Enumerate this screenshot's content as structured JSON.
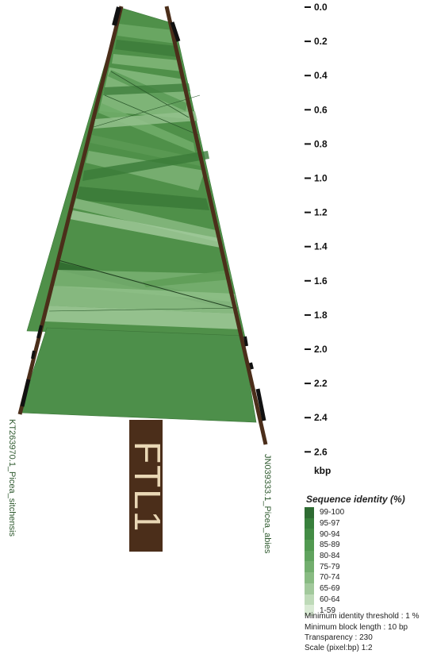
{
  "axis": {
    "unit": "kbp",
    "ticks": [
      "0.0",
      "0.2",
      "0.4",
      "0.6",
      "0.8",
      "1.0",
      "1.2",
      "1.4",
      "1.6",
      "1.8",
      "2.0",
      "2.2",
      "2.4",
      "2.6"
    ]
  },
  "sequences": {
    "left": "KT263970.1_Picea_sitchensis",
    "right": "JN039333.1_Picea_abies"
  },
  "gene": {
    "label": "FTL1",
    "color": "#4b2e1a"
  },
  "legend": {
    "title": "Sequence identity (%)",
    "items": [
      {
        "label": "99-100",
        "color": "#2e6b32"
      },
      {
        "label": "95-97",
        "color": "#38803c"
      },
      {
        "label": "90-94",
        "color": "#438c45"
      },
      {
        "label": "85-89",
        "color": "#519950"
      },
      {
        "label": "80-84",
        "color": "#60a35e"
      },
      {
        "label": "75-79",
        "color": "#72ae6e"
      },
      {
        "label": "70-74",
        "color": "#88bb82"
      },
      {
        "label": "65-69",
        "color": "#a2c99c"
      },
      {
        "label": "60-64",
        "color": "#bedab8"
      },
      {
        "label": "1-59",
        "color": "#d9ead4"
      }
    ]
  },
  "parameters": {
    "min_identity": "Minimum identity threshold : 1 %",
    "min_block": "Minimum block length : 10 bp",
    "transparency": "Transparency : 230",
    "scale": "Scale (pixel:bp) 1:2"
  },
  "colors": {
    "sequence_bar": "#4b2e1a",
    "block_marker": "#111111",
    "base_green": "#4a8a46"
  }
}
